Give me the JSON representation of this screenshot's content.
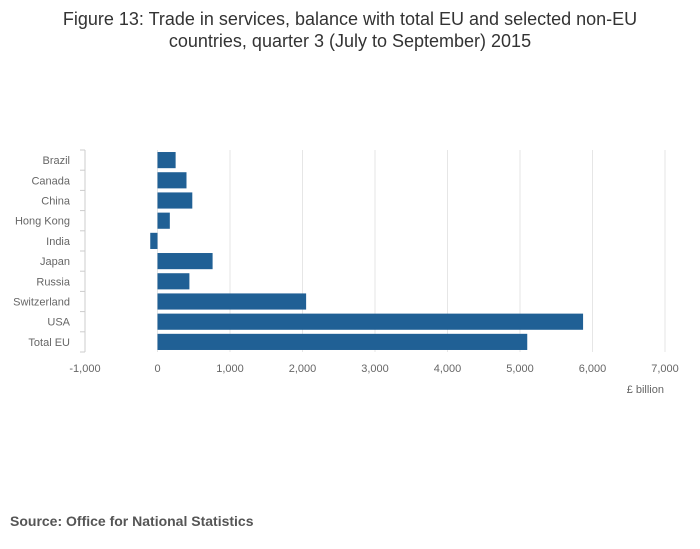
{
  "title_line1": "Figure 13: Trade in services, balance with total EU and selected non-EU",
  "title_line2": "countries, quarter 3 (July to September) 2015",
  "source": "Source: Office for National Statistics",
  "colors": {
    "bar": "#206095",
    "grid": "#e6e6e6",
    "axis": "#cccccc",
    "text": "#666666"
  },
  "chart_data": {
    "type": "bar",
    "orientation": "horizontal",
    "categories": [
      "Brazil",
      "Canada",
      "China",
      "Hong Kong",
      "India",
      "Japan",
      "Russia",
      "Switzerland",
      "USA",
      "Total EU"
    ],
    "values": [
      250,
      400,
      480,
      170,
      -100,
      760,
      440,
      2050,
      5870,
      5100
    ],
    "xlabel": "£ billion",
    "xlim": [
      -1000,
      7000
    ],
    "xticks": [
      -1000,
      0,
      1000,
      2000,
      3000,
      4000,
      5000,
      6000,
      7000
    ],
    "xtick_labels": [
      "-1,000",
      "0",
      "1,000",
      "2,000",
      "3,000",
      "4,000",
      "5,000",
      "6,000",
      "7,000"
    ],
    "grid": true
  }
}
